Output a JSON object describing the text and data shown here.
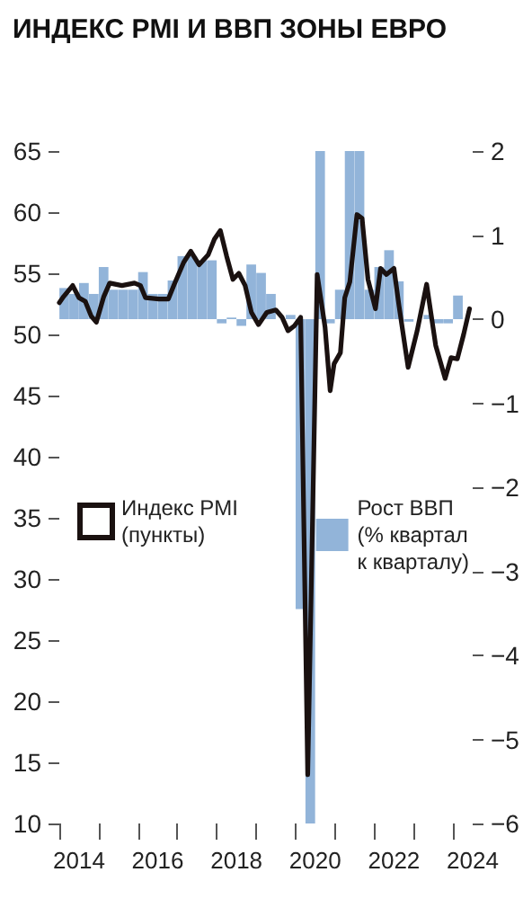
{
  "chart_data": {
    "type": "line",
    "title": "ИНДЕКС PMI И ВВП ЗОНЫ ЕВРО",
    "xlim": [
      2014,
      2024.5
    ],
    "xticks": [
      {
        "value": 2014,
        "label": null
      },
      {
        "value": 2015,
        "label": null
      },
      {
        "value": 2016,
        "label": null
      },
      {
        "value": 2017,
        "label": null
      },
      {
        "value": 2018,
        "label": null
      },
      {
        "value": 2019,
        "label": null
      },
      {
        "value": 2020,
        "label": null
      },
      {
        "value": 2021,
        "label": null
      },
      {
        "value": 2022,
        "label": null
      },
      {
        "value": 2023,
        "label": null
      },
      {
        "value": 2024,
        "label": null
      },
      {
        "value": 2014.5,
        "label": "2014"
      },
      {
        "value": 2016.5,
        "label": "2016"
      },
      {
        "value": 2018.5,
        "label": "2018"
      },
      {
        "value": 2020.5,
        "label": "2020"
      },
      {
        "value": 2022.5,
        "label": "2022"
      },
      {
        "value": 2024.5,
        "label": "2024"
      }
    ],
    "ylim": [
      10,
      65
    ],
    "yticks": [
      10,
      15,
      20,
      25,
      30,
      35,
      40,
      45,
      50,
      55,
      60,
      65
    ],
    "y2lim": [
      -6,
      2
    ],
    "y2ticks": [
      {
        "value": -6,
        "label": "−6"
      },
      {
        "value": -5,
        "label": "−5"
      },
      {
        "value": -4,
        "label": "−4"
      },
      {
        "value": -3,
        "label": "−3"
      },
      {
        "value": -2,
        "label": "−2"
      },
      {
        "value": -1,
        "label": "−1"
      },
      0,
      1,
      2
    ],
    "grid": false,
    "legend": "left",
    "series": [
      {
        "name": "Рост ВВП (% квартал к кварталу)",
        "type": "bar",
        "axis": "y2",
        "color": "#92b4d9",
        "x": [
          2014.125,
          2014.375,
          2014.625,
          2014.875,
          2015.125,
          2015.375,
          2015.625,
          2015.875,
          2016.125,
          2016.375,
          2016.625,
          2016.875,
          2017.125,
          2017.375,
          2017.625,
          2017.875,
          2018.125,
          2018.375,
          2018.625,
          2018.875,
          2019.125,
          2019.375,
          2019.625,
          2019.875,
          2020.125,
          2020.375,
          2020.625,
          2020.875,
          2021.125,
          2021.375,
          2021.625,
          2021.875,
          2022.125,
          2022.375,
          2022.625,
          2022.875,
          2023.125,
          2023.375,
          2023.625,
          2023.875,
          2024.125
        ],
        "values": [
          0.37,
          0.3,
          0.43,
          0.3,
          0.62,
          0.35,
          0.35,
          0.35,
          0.56,
          0.3,
          0.3,
          0.46,
          0.75,
          0.75,
          0.7,
          0.7,
          -0.05,
          0.02,
          -0.08,
          0.65,
          0.55,
          0.3,
          null,
          0.05,
          -3.45,
          -6,
          2,
          -0.05,
          0.35,
          2,
          2,
          0.35,
          0.62,
          0.82,
          0.45,
          -0.03,
          0,
          0.05,
          -0.05,
          -0.05,
          0.28
        ]
      },
      {
        "name": "Индекс PMI (пункты)",
        "color": "#1a1110",
        "marker": "none",
        "line_style": "solid",
        "x": [
          2014.0,
          2014.11,
          2014.34,
          2014.5,
          2014.66,
          2014.81,
          2014.94,
          2015.13,
          2015.28,
          2015.59,
          2015.91,
          2016.06,
          2016.19,
          2016.53,
          2016.77,
          2016.92,
          2017.16,
          2017.34,
          2017.55,
          2017.78,
          2017.94,
          2018.09,
          2018.25,
          2018.41,
          2018.56,
          2018.72,
          2018.88,
          2019.06,
          2019.27,
          2019.5,
          2019.66,
          2019.81,
          2019.97,
          2020.13,
          2020.31,
          2020.55,
          2020.75,
          2020.88,
          2020.98,
          2021.14,
          2021.25,
          2021.38,
          2021.56,
          2021.69,
          2021.84,
          2022.03,
          2022.16,
          2022.31,
          2022.5,
          2022.63,
          2022.86,
          2023.09,
          2023.33,
          2023.56,
          2023.8,
          2023.95,
          2024.11,
          2024.27,
          2024.42
        ],
        "values": [
          52.6,
          53.1,
          54.0,
          53.0,
          52.7,
          51.5,
          51.0,
          53.1,
          54.2,
          54.0,
          54.2,
          54.0,
          53.0,
          52.9,
          52.9,
          54.1,
          55.9,
          56.8,
          55.7,
          56.5,
          57.8,
          58.5,
          56.4,
          54.5,
          55.0,
          54.0,
          51.8,
          50.8,
          51.8,
          52.0,
          51.4,
          50.3,
          50.7,
          51.4,
          14.0,
          54.9,
          50.6,
          45.4,
          47.6,
          48.5,
          53.0,
          54.3,
          59.8,
          59.5,
          54.5,
          52.1,
          55.4,
          54.9,
          55.4,
          52.3,
          47.3,
          50.3,
          54.1,
          49.1,
          46.4,
          48.1,
          48.0,
          50.0,
          52.1
        ]
      }
    ]
  }
}
